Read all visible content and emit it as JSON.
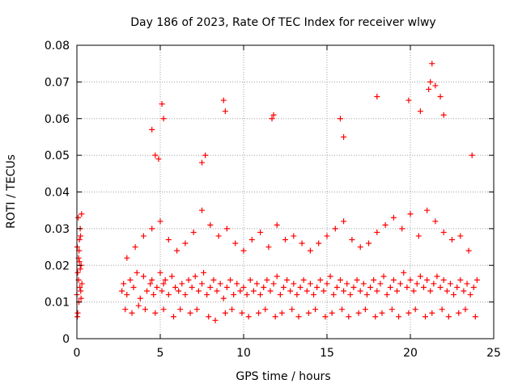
{
  "chart_data": {
    "type": "scatter",
    "title": "Day 186 of 2023, Rate Of TEC Index for receiver wlwy",
    "xlabel": "GPS time / hours",
    "ylabel": "ROTI / TECUs",
    "xlim": [
      0,
      25
    ],
    "ylim": [
      0,
      0.08
    ],
    "xticks": [
      "0",
      "5",
      "10",
      "15",
      "20",
      "25"
    ],
    "yticks": [
      "0",
      "0.01",
      "0.02",
      "0.03",
      "0.04",
      "0.05",
      "0.06",
      "0.07",
      "0.08"
    ],
    "grid": true,
    "legend": "none",
    "marker": "+",
    "color": "#ff0000",
    "series": [
      {
        "x": [
          0.0,
          0.05,
          0.1,
          0.15,
          0.2,
          0.25,
          0.3,
          0.02,
          0.08,
          0.12,
          0.18,
          0.22,
          0.28,
          0.05,
          0.1,
          0.15,
          0.2,
          0.25,
          0.03,
          0.13,
          0.23,
          2.7,
          2.8,
          3.0,
          3.2,
          3.4,
          3.6,
          3.8,
          4.0,
          4.2,
          4.4,
          4.5,
          4.6,
          4.8,
          5.0,
          5.1,
          5.2,
          5.3,
          5.5,
          5.7,
          5.9,
          6.1,
          6.3,
          6.5,
          6.7,
          6.9,
          7.1,
          7.3,
          7.5,
          7.6,
          7.8,
          8.0,
          8.2,
          8.4,
          8.6,
          8.8,
          9.0,
          9.2,
          9.4,
          9.6,
          9.8,
          10.0,
          10.2,
          10.4,
          10.6,
          10.8,
          11.0,
          11.2,
          11.4,
          11.6,
          11.8,
          12.0,
          12.2,
          12.4,
          12.6,
          12.8,
          13.0,
          13.2,
          13.4,
          13.6,
          13.8,
          14.0,
          14.2,
          14.4,
          14.6,
          14.8,
          15.0,
          15.2,
          15.4,
          15.6,
          15.8,
          16.0,
          16.2,
          16.4,
          16.6,
          16.8,
          17.0,
          17.2,
          17.4,
          17.6,
          17.8,
          18.0,
          18.2,
          18.4,
          18.6,
          18.8,
          19.0,
          19.2,
          19.4,
          19.6,
          19.8,
          20.0,
          20.2,
          20.4,
          20.6,
          20.8,
          21.0,
          21.2,
          21.4,
          21.6,
          21.8,
          22.0,
          22.2,
          22.4,
          22.6,
          22.8,
          23.0,
          23.2,
          23.4,
          23.6,
          23.8,
          24.0,
          3.0,
          3.5,
          4.0,
          4.5,
          5.0,
          5.5,
          6.0,
          6.5,
          7.0,
          7.5,
          8.0,
          8.5,
          9.0,
          9.5,
          10.0,
          10.5,
          11.0,
          11.5,
          12.0,
          12.5,
          13.0,
          13.5,
          14.0,
          14.5,
          15.0,
          15.5,
          16.0,
          16.5,
          17.0,
          17.5,
          18.0,
          18.5,
          19.0,
          19.5,
          20.0,
          20.5,
          21.0,
          21.5,
          22.0,
          22.5,
          23.0,
          23.5,
          2.9,
          3.3,
          3.7,
          4.1,
          4.7,
          5.2,
          5.8,
          6.2,
          6.8,
          7.2,
          7.9,
          8.3,
          8.9,
          9.3,
          9.9,
          10.3,
          10.9,
          11.3,
          11.9,
          12.3,
          12.9,
          13.3,
          13.9,
          14.3,
          14.9,
          15.3,
          15.9,
          16.3,
          16.9,
          17.3,
          17.9,
          18.3,
          18.9,
          19.3,
          19.9,
          20.3,
          20.9,
          21.3,
          21.9,
          22.3,
          22.9,
          23.3,
          23.9,
          4.5,
          4.7,
          4.9,
          5.1,
          5.2,
          7.5,
          7.7,
          8.8,
          8.9,
          11.7,
          11.8,
          15.8,
          16.0,
          18.0,
          19.9,
          20.6,
          21.1,
          21.2,
          21.3,
          21.5,
          21.8,
          22.0,
          23.7
        ],
        "y": [
          0.012,
          0.018,
          0.022,
          0.027,
          0.03,
          0.02,
          0.015,
          0.025,
          0.033,
          0.01,
          0.014,
          0.028,
          0.034,
          0.007,
          0.016,
          0.021,
          0.019,
          0.011,
          0.006,
          0.024,
          0.013,
          0.013,
          0.015,
          0.012,
          0.016,
          0.014,
          0.018,
          0.011,
          0.017,
          0.013,
          0.015,
          0.016,
          0.012,
          0.014,
          0.018,
          0.013,
          0.015,
          0.016,
          0.012,
          0.017,
          0.014,
          0.013,
          0.015,
          0.012,
          0.016,
          0.014,
          0.017,
          0.013,
          0.015,
          0.018,
          0.012,
          0.014,
          0.016,
          0.013,
          0.015,
          0.011,
          0.014,
          0.016,
          0.012,
          0.015,
          0.013,
          0.014,
          0.012,
          0.016,
          0.013,
          0.015,
          0.012,
          0.014,
          0.016,
          0.013,
          0.015,
          0.017,
          0.012,
          0.014,
          0.016,
          0.013,
          0.015,
          0.012,
          0.014,
          0.016,
          0.013,
          0.015,
          0.012,
          0.014,
          0.016,
          0.013,
          0.015,
          0.017,
          0.012,
          0.014,
          0.016,
          0.013,
          0.015,
          0.012,
          0.014,
          0.016,
          0.013,
          0.015,
          0.012,
          0.014,
          0.016,
          0.013,
          0.015,
          0.017,
          0.012,
          0.014,
          0.016,
          0.013,
          0.015,
          0.018,
          0.014,
          0.016,
          0.013,
          0.015,
          0.017,
          0.014,
          0.016,
          0.013,
          0.015,
          0.017,
          0.014,
          0.016,
          0.013,
          0.015,
          0.012,
          0.014,
          0.016,
          0.013,
          0.015,
          0.012,
          0.014,
          0.016,
          0.022,
          0.025,
          0.028,
          0.03,
          0.032,
          0.027,
          0.024,
          0.026,
          0.029,
          0.035,
          0.031,
          0.028,
          0.03,
          0.026,
          0.024,
          0.027,
          0.029,
          0.025,
          0.031,
          0.027,
          0.028,
          0.026,
          0.024,
          0.026,
          0.028,
          0.03,
          0.032,
          0.027,
          0.025,
          0.026,
          0.029,
          0.031,
          0.033,
          0.03,
          0.034,
          0.028,
          0.035,
          0.032,
          0.029,
          0.027,
          0.028,
          0.024,
          0.008,
          0.007,
          0.009,
          0.008,
          0.007,
          0.008,
          0.006,
          0.008,
          0.007,
          0.008,
          0.006,
          0.005,
          0.007,
          0.008,
          0.007,
          0.006,
          0.007,
          0.008,
          0.006,
          0.007,
          0.008,
          0.006,
          0.007,
          0.008,
          0.006,
          0.007,
          0.008,
          0.006,
          0.007,
          0.008,
          0.006,
          0.007,
          0.008,
          0.006,
          0.007,
          0.008,
          0.006,
          0.007,
          0.008,
          0.006,
          0.007,
          0.008,
          0.006,
          0.057,
          0.05,
          0.049,
          0.064,
          0.06,
          0.048,
          0.05,
          0.065,
          0.062,
          0.06,
          0.061,
          0.06,
          0.055,
          0.066,
          0.065,
          0.062,
          0.068,
          0.07,
          0.075,
          0.069,
          0.066,
          0.061,
          0.05
        ]
      }
    ]
  }
}
